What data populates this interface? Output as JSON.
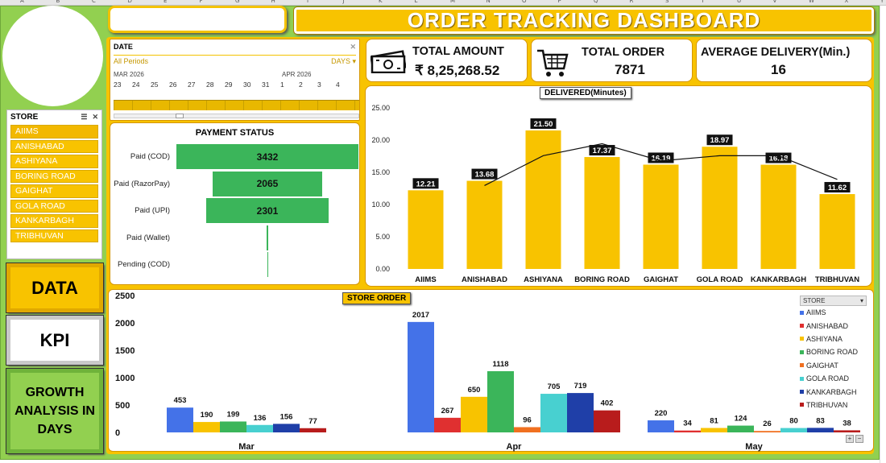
{
  "sheet_columns": [
    "A",
    "B",
    "C",
    "D",
    "E",
    "F",
    "G",
    "H",
    "I",
    "J",
    "K",
    "L",
    "M",
    "N",
    "O",
    "P",
    "Q",
    "R",
    "S",
    "T",
    "U",
    "V",
    "W",
    "X",
    "Y"
  ],
  "header": {
    "title": "ORDER TRACKING DASHBOARD"
  },
  "store_slicer": {
    "title": "STORE",
    "items": [
      "AIIMS",
      "ANISHABAD",
      "ASHIYANA",
      "BORING ROAD",
      "GAIGHAT",
      "GOLA ROAD",
      "KANKARBAGH",
      "TRIBHUVAN"
    ]
  },
  "nav": {
    "data_label": "DATA",
    "kpi_label": "KPI",
    "growth_label": "GROWTH ANALYSIS IN DAYS"
  },
  "timeline": {
    "title": "DATE",
    "selection": "All Periods",
    "granularity": "DAYS",
    "months": [
      "MAR 2026",
      "APR 2026"
    ],
    "days": [
      "23",
      "24",
      "25",
      "26",
      "27",
      "28",
      "29",
      "30",
      "31",
      "1",
      "2",
      "3",
      "4"
    ]
  },
  "kpis": {
    "total_amount": {
      "label": "TOTAL AMOUNT",
      "value": "₹ 8,25,268.52"
    },
    "total_order": {
      "label": "TOTAL ORDER",
      "value": "7871"
    },
    "avg_delivery": {
      "label": "AVERAGE DELIVERY(Min.)",
      "value": "16"
    }
  },
  "colors": {
    "accent": "#f8c300",
    "frame": "#92d050",
    "pay_bar": "#3bb55a"
  },
  "chart_data": [
    {
      "type": "bar",
      "title": "PAYMENT STATUS",
      "orientation": "horizontal",
      "categories": [
        "Paid (COD)",
        "Paid (RazorPay)",
        "Paid (UPI)",
        "Paid (Wallet)",
        "Pending (COD)"
      ],
      "values": [
        3432,
        2065,
        2301,
        25,
        8
      ],
      "data_labels": [
        "3432",
        "2065",
        "2301",
        "",
        ""
      ]
    },
    {
      "type": "bar",
      "title": "DELIVERED(Minutes)",
      "categories": [
        "AIIMS",
        "ANISHABAD",
        "ASHIYANA",
        "BORING ROAD",
        "GAIGHAT",
        "GOLA ROAD",
        "KANKARBAGH",
        "TRIBHUVAN"
      ],
      "values": [
        12.21,
        13.68,
        21.5,
        17.37,
        16.19,
        18.97,
        16.18,
        11.62
      ],
      "y_ticks": [
        "0.00",
        "5.00",
        "10.00",
        "15.00",
        "20.00",
        "25.00"
      ],
      "ylim": [
        0,
        25
      ],
      "trendline": true
    },
    {
      "type": "bar",
      "title": "STORE ORDER",
      "categories": [
        "Mar",
        "Apr",
        "May"
      ],
      "y_ticks": [
        "0",
        "500",
        "1000",
        "1500",
        "2000",
        "2500"
      ],
      "ylim": [
        0,
        2500
      ],
      "legend_header": "STORE",
      "series": [
        {
          "name": "AIIMS",
          "color": "#4472e8",
          "values": [
            453,
            2017,
            220
          ]
        },
        {
          "name": "ANISHABAD",
          "color": "#e03030",
          "values": [
            null,
            267,
            34
          ]
        },
        {
          "name": "ASHIYANA",
          "color": "#f8c300",
          "values": [
            190,
            650,
            81
          ]
        },
        {
          "name": "BORING ROAD",
          "color": "#3bb55a",
          "values": [
            199,
            1118,
            124
          ]
        },
        {
          "name": "GAIGHAT",
          "color": "#f07020",
          "values": [
            null,
            96,
            26
          ]
        },
        {
          "name": "GOLA ROAD",
          "color": "#48d0d0",
          "values": [
            136,
            705,
            80
          ]
        },
        {
          "name": "KANKARBAGH",
          "color": "#1f3fa8",
          "values": [
            156,
            719,
            83
          ]
        },
        {
          "name": "TRIBHUVAN",
          "color": "#b81c1c",
          "values": [
            77,
            402,
            38
          ]
        }
      ]
    }
  ]
}
